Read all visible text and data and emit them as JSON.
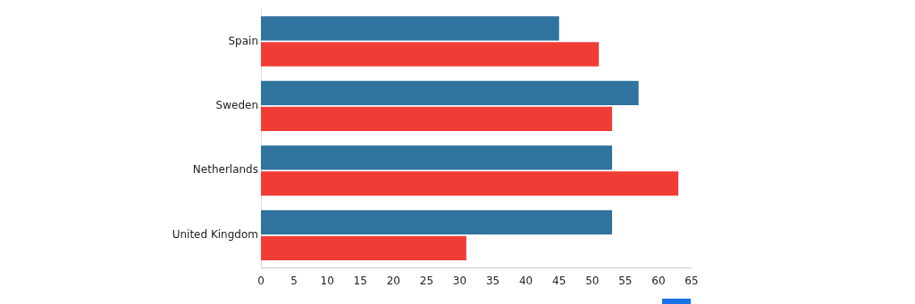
{
  "chart_data": {
    "type": "bar",
    "orientation": "horizontal",
    "categories": [
      "Spain",
      "Sweden",
      "Netherlands",
      "United Kingdom"
    ],
    "series": [
      {
        "color": "#31739f",
        "values": [
          45,
          57,
          53,
          53
        ]
      },
      {
        "color": "#f03c35",
        "values": [
          51,
          53,
          63,
          31
        ]
      }
    ],
    "xlim": [
      0,
      65
    ],
    "xticks": [
      0,
      5,
      10,
      15,
      20,
      25,
      30,
      35,
      40,
      45,
      50,
      55,
      60,
      65
    ],
    "grid": false,
    "legend": false
  }
}
